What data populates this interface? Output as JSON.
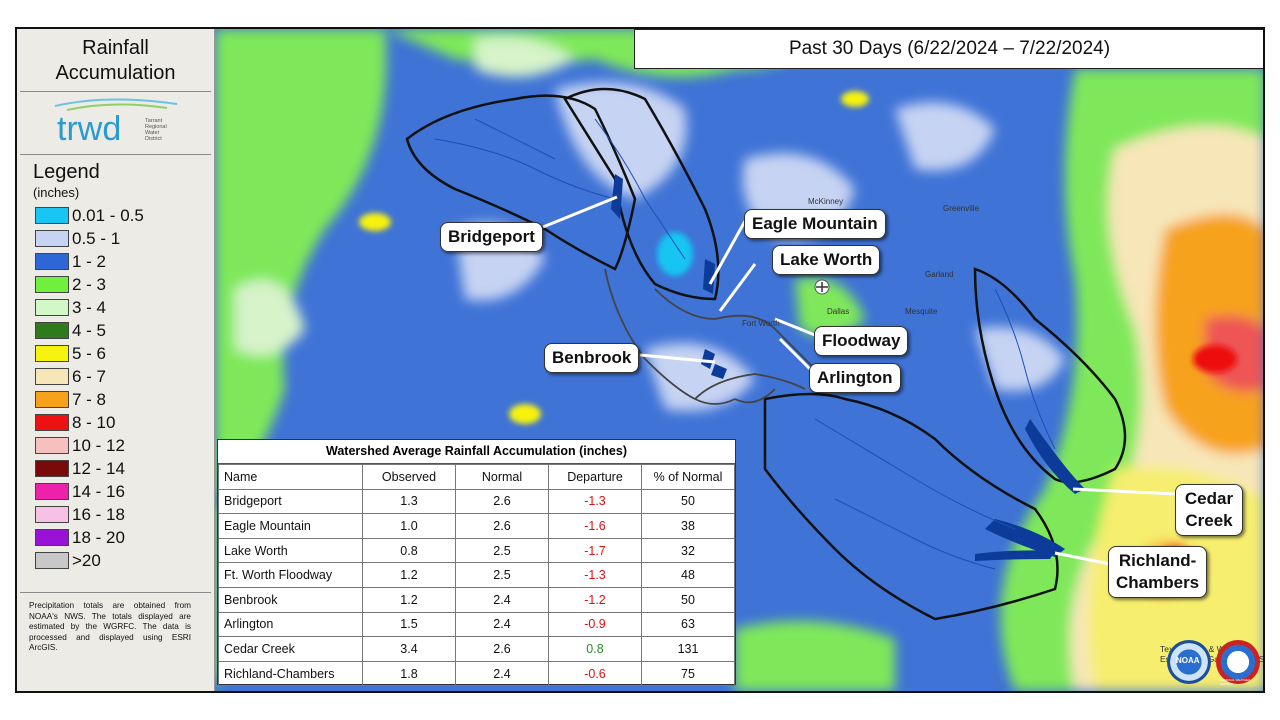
{
  "sidebar": {
    "title_line1": "Rainfall",
    "title_line2": "Accumulation",
    "logo_text": "trwd",
    "logo_sub1": "Tarrant",
    "logo_sub2": "Regional",
    "logo_sub3": "Water",
    "logo_sub4": "District",
    "legend_title": "Legend",
    "legend_units": "(inches)",
    "legend": [
      {
        "label": "0.01 - 0.5",
        "color": "#19c5f2"
      },
      {
        "label": "0.5 - 1",
        "color": "#c6d3f3"
      },
      {
        "label": "1 - 2",
        "color": "#2e66d6"
      },
      {
        "label": "2 - 3",
        "color": "#6ff03c"
      },
      {
        "label": "3 - 4",
        "color": "#d3f7c7"
      },
      {
        "label": "4 - 5",
        "color": "#2f7a1c"
      },
      {
        "label": "5 - 6",
        "color": "#f7f20f"
      },
      {
        "label": "6 - 7",
        "color": "#f7e6b8"
      },
      {
        "label": "7 - 8",
        "color": "#f7a21c"
      },
      {
        "label": "8 - 10",
        "color": "#ee1111"
      },
      {
        "label": "10 - 12",
        "color": "#f7c0c0"
      },
      {
        "label": "12 - 14",
        "color": "#7a0a0a"
      },
      {
        "label": "14 - 16",
        "color": "#ee22aa"
      },
      {
        "label": "16 - 18",
        "color": "#f7c1e6"
      },
      {
        "label": "18 - 20",
        "color": "#9a12d6"
      },
      {
        "label": ">20",
        "color": "#c8c8c8"
      }
    ],
    "note": "Precipitation totals are obtained from NOAA's NWS. The totals displayed are estimated by the WGRFC. The data is processed and displayed using ESRI ArcGIS."
  },
  "header": {
    "period": "Past 30 Days (6/22/2024 – 7/22/2024)"
  },
  "callouts": {
    "bridgeport": "Bridgeport",
    "eagle_mountain": "Eagle Mountain",
    "lake_worth": "Lake Worth",
    "floodway": "Floodway",
    "benbrook": "Benbrook",
    "arlington": "Arlington",
    "cedar_creek_1": "Cedar",
    "cedar_creek_2": "Creek",
    "richland_1": "Richland-",
    "richland_2": "Chambers"
  },
  "table": {
    "title": "Watershed Average Rainfall Accumulation (inches)",
    "headers": [
      "Name",
      "Observed",
      "Normal",
      "Departure",
      "% of Normal"
    ],
    "rows": [
      {
        "name": "Bridgeport",
        "observed": "1.3",
        "normal": "2.6",
        "departure": "-1.3",
        "pct": "50"
      },
      {
        "name": "Eagle Mountain",
        "observed": "1.0",
        "normal": "2.6",
        "departure": "-1.6",
        "pct": "38"
      },
      {
        "name": "Lake Worth",
        "observed": "0.8",
        "normal": "2.5",
        "departure": "-1.7",
        "pct": "32"
      },
      {
        "name": "Ft. Worth Floodway",
        "observed": "1.2",
        "normal": "2.5",
        "departure": "-1.3",
        "pct": "48"
      },
      {
        "name": "Benbrook",
        "observed": "1.2",
        "normal": "2.4",
        "departure": "-1.2",
        "pct": "50"
      },
      {
        "name": "Arlington",
        "observed": "1.5",
        "normal": "2.4",
        "departure": "-0.9",
        "pct": "63"
      },
      {
        "name": "Cedar Creek",
        "observed": "3.4",
        "normal": "2.6",
        "departure": "0.8",
        "pct": "131"
      },
      {
        "name": "Richland-Chambers",
        "observed": "1.8",
        "normal": "2.4",
        "departure": "-0.6",
        "pct": "75"
      }
    ]
  },
  "map_labels": {
    "fort_worth": "Fort Worth",
    "dallas": "Dallas",
    "mckinney": "McKinney",
    "greenville": "Greenville",
    "garland": "Garland",
    "mesquite": "Mesquite"
  },
  "credit": "Texas Parks & Wildlife, Esri, HERE, Garmin, USGS",
  "badges": {
    "noaa": "NOAA",
    "nws": "NATIONAL WEATHER SERVICE"
  }
}
